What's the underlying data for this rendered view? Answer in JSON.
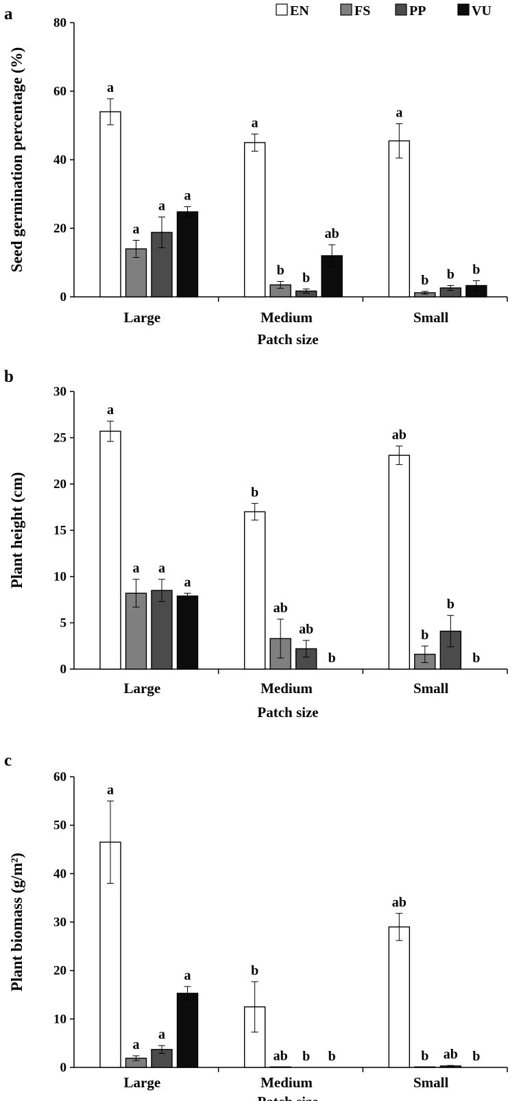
{
  "chart_data": [
    {
      "type": "bar",
      "panel": "a",
      "title": "",
      "categories": [
        "Large",
        "Medium",
        "Small"
      ],
      "xlabel": "Patch size",
      "ylabel": "Seed germination percentage (%)",
      "ylim": [
        0,
        80
      ],
      "yticks": [
        "0",
        "20",
        "40",
        "60",
        "80"
      ],
      "series": [
        {
          "name": "EN",
          "values": [
            54,
            45,
            45.5
          ],
          "errors": [
            3.8,
            2.5,
            5
          ],
          "letters": [
            "a",
            "a",
            "a"
          ]
        },
        {
          "name": "FS",
          "values": [
            14,
            3.5,
            1.2
          ],
          "errors": [
            2.5,
            1.0,
            0.4
          ],
          "letters": [
            "a",
            "b",
            "b"
          ]
        },
        {
          "name": "PP",
          "values": [
            18.8,
            1.7,
            2.6
          ],
          "errors": [
            4.5,
            0.6,
            0.7
          ],
          "letters": [
            "a",
            "b",
            "b"
          ]
        },
        {
          "name": "VU",
          "values": [
            24.8,
            12,
            3.3
          ],
          "errors": [
            1.5,
            3.2,
            1.4
          ],
          "letters": [
            "a",
            "ab",
            "b"
          ]
        }
      ]
    },
    {
      "type": "bar",
      "panel": "b",
      "title": "",
      "categories": [
        "Large",
        "Medium",
        "Small"
      ],
      "xlabel": "Patch size",
      "ylabel": "Plant height (cm)",
      "ylim": [
        0,
        30
      ],
      "yticks": [
        "0",
        "5",
        "10",
        "15",
        "20",
        "25",
        "30"
      ],
      "series": [
        {
          "name": "EN",
          "values": [
            25.7,
            17,
            23.1
          ],
          "errors": [
            1.1,
            0.9,
            1.0
          ],
          "letters": [
            "a",
            "b",
            "ab"
          ]
        },
        {
          "name": "FS",
          "values": [
            8.2,
            3.3,
            1.6
          ],
          "errors": [
            1.5,
            2.1,
            0.9
          ],
          "letters": [
            "a",
            "ab",
            "b"
          ]
        },
        {
          "name": "PP",
          "values": [
            8.5,
            2.2,
            4.1
          ],
          "errors": [
            1.2,
            0.9,
            1.7
          ],
          "letters": [
            "a",
            "ab",
            "b"
          ]
        },
        {
          "name": "VU",
          "values": [
            7.9,
            0,
            0
          ],
          "errors": [
            0.3,
            0,
            0
          ],
          "letters": [
            "a",
            "b",
            "b"
          ]
        }
      ]
    },
    {
      "type": "bar",
      "panel": "c",
      "title": "",
      "categories": [
        "Large",
        "Medium",
        "Small"
      ],
      "xlabel": "Patch size",
      "ylabel": "Plant biomass (g/m²)",
      "ylim": [
        0,
        60
      ],
      "yticks": [
        "0",
        "10",
        "20",
        "30",
        "40",
        "50",
        "60"
      ],
      "series": [
        {
          "name": "EN",
          "values": [
            46.5,
            12.5,
            29
          ],
          "errors": [
            8.5,
            5.2,
            2.8
          ],
          "letters": [
            "a",
            "b",
            "ab"
          ]
        },
        {
          "name": "FS",
          "values": [
            1.9,
            0.1,
            0.1
          ],
          "errors": [
            0.5,
            0,
            0
          ],
          "letters": [
            "a",
            "ab",
            "b"
          ]
        },
        {
          "name": "PP",
          "values": [
            3.7,
            0,
            0.3
          ],
          "errors": [
            0.8,
            0,
            0.1
          ],
          "letters": [
            "a",
            "b",
            "ab"
          ]
        },
        {
          "name": "VU",
          "values": [
            15.3,
            0,
            0
          ],
          "errors": [
            1.4,
            0,
            0
          ],
          "letters": [
            "a",
            "b",
            "b"
          ]
        }
      ]
    }
  ],
  "legend": {
    "items": [
      {
        "name": "EN",
        "color": "#ffffff"
      },
      {
        "name": "FS",
        "color": "#7f7f7f"
      },
      {
        "name": "PP",
        "color": "#4b4b4b"
      },
      {
        "name": "VU",
        "color": "#0c0c0c"
      }
    ]
  }
}
